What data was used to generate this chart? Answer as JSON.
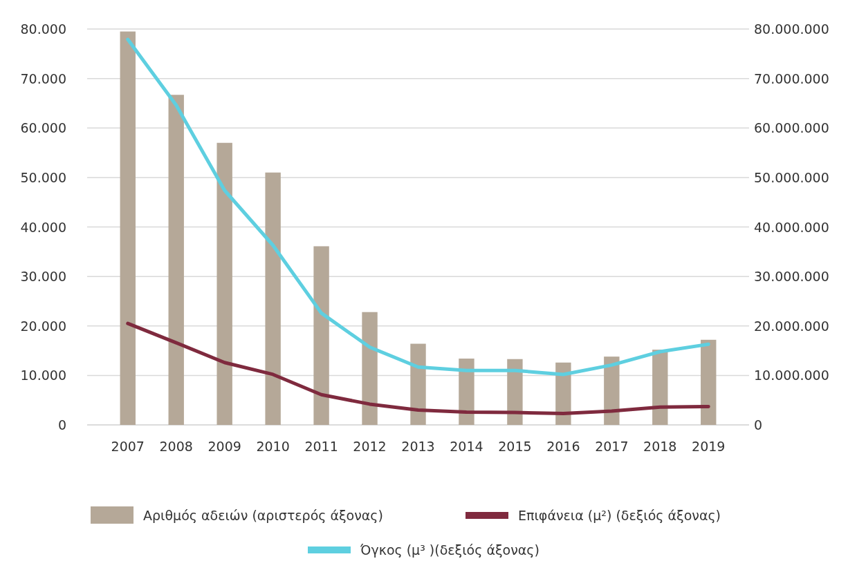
{
  "chart_data": {
    "type": "bar",
    "categories": [
      "2007",
      "2008",
      "2009",
      "2010",
      "2011",
      "2012",
      "2013",
      "2014",
      "2015",
      "2016",
      "2017",
      "2018",
      "2019"
    ],
    "series": [
      {
        "name": "Αριθμός αδειών (αριστερός άξονας)",
        "color": "#b5a898",
        "values": [
          79500,
          66700,
          57000,
          51000,
          36100,
          22800,
          16400,
          13400,
          13300,
          12600,
          13800,
          15200,
          17200
        ]
      },
      {
        "name": "Επιφάνεια (μ²) (δεξιός άξονας)",
        "type": "line",
        "axis": "y2",
        "color": "#7f2a3e",
        "values": [
          20500000,
          16600000,
          12600000,
          10200000,
          6100000,
          4200000,
          3000000,
          2600000,
          2500000,
          2300000,
          2800000,
          3600000,
          3700000
        ]
      },
      {
        "name": "Όγκος (μ³ )(δεξιός άξονας)",
        "type": "line",
        "axis": "y2",
        "color": "#5ecfe0",
        "values": [
          77900000,
          64600000,
          47400000,
          36300000,
          22600000,
          15700000,
          11700000,
          11000000,
          11000000,
          10200000,
          12100000,
          14800000,
          16300000
        ]
      }
    ],
    "ylim": [
      0,
      80000
    ],
    "yticks": [
      0,
      {
        "value": 10000,
        "label": "10.000"
      },
      {
        "value": 20000,
        "label": "20.000"
      },
      {
        "value": 30000,
        "label": "30.000"
      },
      {
        "value": 40000,
        "label": "40.000"
      },
      {
        "value": 50000,
        "label": "50.000"
      },
      {
        "value": 60000,
        "label": "60.000"
      },
      {
        "value": 70000,
        "label": "70.000"
      },
      {
        "value": 80000,
        "label": "80.000"
      }
    ],
    "y2lim": [
      0,
      80000000
    ],
    "y2ticks": [
      0,
      {
        "value": 10000000,
        "label": "10.000.000"
      },
      {
        "value": 20000000,
        "label": "20.000.000"
      },
      {
        "value": 30000000,
        "label": "30.000.000"
      },
      {
        "value": 40000000,
        "label": "40.000.000"
      },
      {
        "value": 50000000,
        "label": "50.000.000"
      },
      {
        "value": 60000000,
        "label": "60.000.000"
      },
      {
        "value": 70000000,
        "label": "70.000.000"
      },
      {
        "value": 80000000,
        "label": "80.000.000"
      }
    ],
    "grid": "y",
    "legend": "bottom",
    "line_style": "solid",
    "marker": "none"
  }
}
